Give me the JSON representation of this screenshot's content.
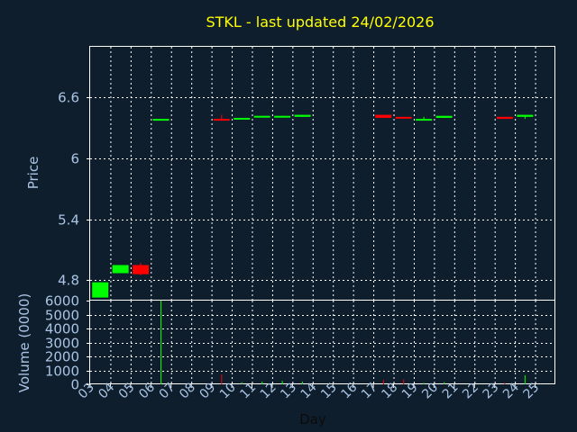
{
  "chart_data": [
    {
      "type": "candlestick",
      "title": "STKL - last updated 24/02/2026",
      "ylabel": "Price",
      "ylim": [
        4.6,
        7.1
      ],
      "yticks": [
        "6.6",
        "6",
        "5.4",
        "4.8"
      ],
      "ytick_values": [
        6.6,
        6.0,
        5.4,
        4.8
      ],
      "grid": true,
      "colors": {
        "up": "#00ff00",
        "down": "#ff0000",
        "background": "#0f1e2d",
        "grid": "#ffffff",
        "text": "#a9c4e4",
        "title": "#ffff00"
      },
      "candles": [
        {
          "day": "03",
          "open": 4.63,
          "close": 4.78,
          "high": 4.78,
          "low": 4.63
        },
        {
          "day": "04",
          "open": 4.87,
          "close": 4.95,
          "high": 4.95,
          "low": 4.87
        },
        {
          "day": "05",
          "open": 4.95,
          "close": 4.86,
          "high": 4.97,
          "low": 4.85
        },
        {
          "day": "06",
          "open": 6.38,
          "close": 6.39,
          "high": 6.39,
          "low": 6.38
        },
        {
          "day": "09",
          "open": 6.39,
          "close": 6.38,
          "high": 6.43,
          "low": 6.38
        },
        {
          "day": "10",
          "open": 6.39,
          "close": 6.4,
          "high": 6.4,
          "low": 6.39
        },
        {
          "day": "11",
          "open": 6.41,
          "close": 6.42,
          "high": 6.42,
          "low": 6.41
        },
        {
          "day": "12",
          "open": 6.41,
          "close": 6.42,
          "high": 6.42,
          "low": 6.41
        },
        {
          "day": "13",
          "open": 6.41,
          "close": 6.43,
          "high": 6.43,
          "low": 6.41
        },
        {
          "day": "17",
          "open": 6.43,
          "close": 6.4,
          "high": 6.43,
          "low": 6.4
        },
        {
          "day": "18",
          "open": 6.41,
          "close": 6.4,
          "high": 6.41,
          "low": 6.4
        },
        {
          "day": "19",
          "open": 6.38,
          "close": 6.39,
          "high": 6.41,
          "low": 6.38
        },
        {
          "day": "20",
          "open": 6.4,
          "close": 6.42,
          "high": 6.42,
          "low": 6.4
        },
        {
          "day": "23",
          "open": 6.41,
          "close": 6.39,
          "high": 6.41,
          "low": 6.39
        },
        {
          "day": "24",
          "open": 6.41,
          "close": 6.43,
          "high": 6.43,
          "low": 6.39
        }
      ]
    },
    {
      "type": "bar",
      "ylabel": "Volume (0000)",
      "xlabel": "Day",
      "ylim": [
        0,
        6000
      ],
      "yticks": [
        "6000",
        "5000",
        "4000",
        "3000",
        "2000",
        "1000",
        "0"
      ],
      "ytick_values": [
        6000,
        5000,
        4000,
        3000,
        2000,
        1000,
        0
      ],
      "categories": [
        "03",
        "04",
        "05",
        "06",
        "07",
        "08",
        "09",
        "10",
        "11",
        "12",
        "13",
        "14",
        "15",
        "16",
        "17",
        "18",
        "19",
        "20",
        "21",
        "22",
        "23",
        "24",
        "25"
      ],
      "volumes": [
        {
          "day": "06",
          "value": 6000,
          "color": "#00ff00"
        },
        {
          "day": "09",
          "value": 700,
          "color": "#ff0000"
        },
        {
          "day": "10",
          "value": 150,
          "color": "#00ff00"
        },
        {
          "day": "11",
          "value": 200,
          "color": "#00ff00"
        },
        {
          "day": "12",
          "value": 250,
          "color": "#00ff00"
        },
        {
          "day": "13",
          "value": 200,
          "color": "#00ff00"
        },
        {
          "day": "17",
          "value": 300,
          "color": "#ff0000"
        },
        {
          "day": "18",
          "value": 350,
          "color": "#ff0000"
        },
        {
          "day": "19",
          "value": 100,
          "color": "#00ff00"
        },
        {
          "day": "20",
          "value": 150,
          "color": "#00ff00"
        },
        {
          "day": "23",
          "value": 120,
          "color": "#ff0000"
        },
        {
          "day": "24",
          "value": 650,
          "color": "#00ff00"
        }
      ]
    }
  ]
}
